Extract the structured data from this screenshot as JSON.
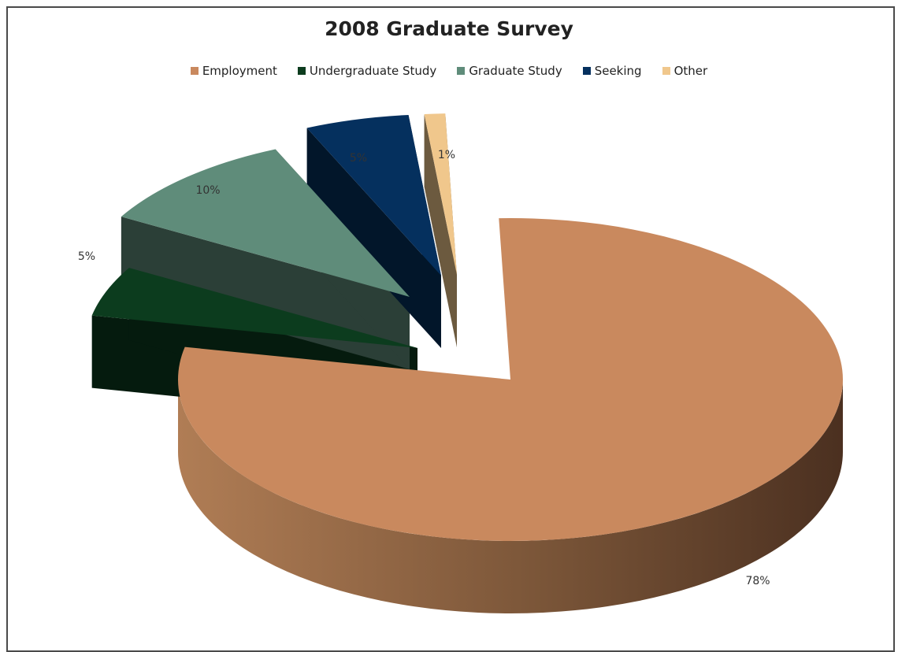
{
  "chart_data": {
    "type": "pie",
    "title": "2008 Graduate Survey",
    "legend_position": "top",
    "slices": [
      {
        "name": "Employment",
        "value": 78,
        "label": "78%",
        "color": "#c9895e"
      },
      {
        "name": "Undergraduate Study",
        "value": 5,
        "label": "5%",
        "color": "#0c3c1e"
      },
      {
        "name": "Graduate Study",
        "value": 10,
        "label": "10%",
        "color": "#5f8c7a"
      },
      {
        "name": "Seeking",
        "value": 5,
        "label": "5%",
        "color": "#05305e"
      },
      {
        "name": "Other",
        "value": 1,
        "label": "1%",
        "color": "#f0c78c"
      }
    ]
  }
}
